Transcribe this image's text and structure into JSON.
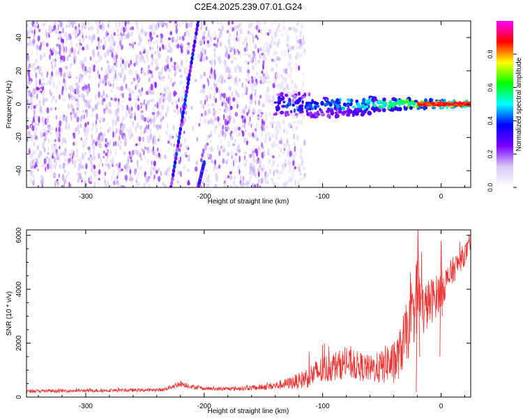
{
  "figure": {
    "title": "C2E4.2025.239.07.01.G24"
  },
  "chart_data": [
    {
      "type": "heatmap",
      "name": "spectrogram",
      "xlabel": "Height of straight line (km)",
      "ylabel": "Frequency (Hz)",
      "xlim": [
        -350,
        25
      ],
      "ylim": [
        -50,
        50
      ],
      "xticks": [
        -300,
        -200,
        -100,
        0
      ],
      "xtick_labels": [
        "-300",
        "-200",
        "-100",
        "0"
      ],
      "yticks": [
        -40,
        -20,
        0,
        20,
        40
      ],
      "ytick_labels": [
        "-40",
        "-20",
        "0",
        "20",
        "40"
      ],
      "features": [
        {
          "name": "scattered noise speckle",
          "x_range": [
            -350,
            -115
          ],
          "y_range": [
            -50,
            50
          ],
          "level": 0.2
        },
        {
          "name": "stationary carrier line",
          "x_range": [
            -140,
            25
          ],
          "y_center": 0,
          "level_start": 0.35,
          "level_end": 0.9
        },
        {
          "name": "sloped interference line",
          "from": [
            -228,
            -50
          ],
          "to": [
            -205,
            50
          ],
          "level": 0.35
        },
        {
          "name": "second sloped line segment",
          "from": [
            -205,
            -50
          ],
          "to": [
            -200,
            -35
          ],
          "level": 0.35
        }
      ],
      "colorbar": {
        "label": "Normalized spectral amplitude",
        "range": [
          0,
          1
        ],
        "ticks": [
          0.0,
          0.2,
          0.4,
          0.6,
          0.8
        ],
        "tick_labels": [
          "0.0",
          "0.2",
          "0.4",
          "0.6",
          "0.8"
        ],
        "colormap": [
          "#ffffff",
          "#d8c8f6",
          "#7a00ff",
          "#0000ff",
          "#00ffff",
          "#00ff00",
          "#ffff00",
          "#ff0000",
          "#ff00ff"
        ]
      }
    },
    {
      "type": "line",
      "name": "snr",
      "xlabel": "Height of straight line (km)",
      "ylabel": "SNR (10 * v/v)",
      "xlim": [
        -350,
        25
      ],
      "ylim": [
        0,
        6200
      ],
      "xticks": [
        -300,
        -200,
        -100,
        0
      ],
      "xtick_labels": [
        "-300",
        "-200",
        "-100",
        "0"
      ],
      "yticks": [
        0,
        2000,
        4000,
        6000
      ],
      "ytick_labels": [
        "0",
        "2000",
        "4000",
        "6000"
      ],
      "color": "#ee3333",
      "series": [
        {
          "name": "SNR",
          "x": [
            -350,
            -325,
            -300,
            -275,
            -250,
            -235,
            -220,
            -210,
            -200,
            -185,
            -170,
            -155,
            -140,
            -130,
            -120,
            -110,
            -100,
            -90,
            -80,
            -70,
            -60,
            -50,
            -45,
            -40,
            -35,
            -30,
            -25,
            -20,
            -15,
            -10,
            -5,
            0,
            5,
            10,
            15,
            20,
            25
          ],
          "y": [
            220,
            230,
            240,
            250,
            260,
            270,
            500,
            380,
            320,
            300,
            320,
            350,
            420,
            500,
            600,
            800,
            1000,
            1150,
            1250,
            1150,
            1050,
            1100,
            1300,
            1200,
            1600,
            2300,
            2700,
            3900,
            3200,
            3500,
            3700,
            4000,
            4300,
            4700,
            5000,
            5300,
            5600
          ],
          "amplitude": [
            60,
            60,
            60,
            60,
            60,
            60,
            120,
            80,
            70,
            70,
            80,
            100,
            150,
            200,
            300,
            450,
            550,
            550,
            550,
            550,
            500,
            650,
            750,
            800,
            900,
            1100,
            1100,
            1500,
            1000,
            900,
            800,
            700,
            600,
            500,
            450,
            400,
            350
          ]
        }
      ]
    }
  ]
}
